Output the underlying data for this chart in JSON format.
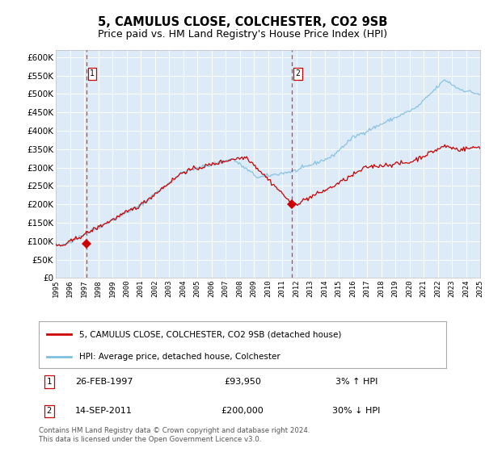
{
  "title": "5, CAMULUS CLOSE, COLCHESTER, CO2 9SB",
  "subtitle": "Price paid vs. HM Land Registry's House Price Index (HPI)",
  "title_fontsize": 10.5,
  "subtitle_fontsize": 9,
  "background_color": "#ddeaf7",
  "hpi_color": "#7fbfdf",
  "price_color": "#cc0000",
  "ylim": [
    0,
    620000
  ],
  "ytick_vals": [
    0,
    50000,
    100000,
    150000,
    200000,
    250000,
    300000,
    350000,
    400000,
    450000,
    500000,
    550000,
    600000
  ],
  "ytick_labels": [
    "£0",
    "£50K",
    "£100K",
    "£150K",
    "£200K",
    "£250K",
    "£300K",
    "£350K",
    "£400K",
    "£450K",
    "£500K",
    "£550K",
    "£600K"
  ],
  "legend_label_price": "5, CAMULUS CLOSE, COLCHESTER, CO2 9SB (detached house)",
  "legend_label_hpi": "HPI: Average price, detached house, Colchester",
  "annotation1_label": "1",
  "annotation1_date": "26-FEB-1997",
  "annotation1_price": "£93,950",
  "annotation1_hpi": "3% ↑ HPI",
  "annotation2_label": "2",
  "annotation2_date": "14-SEP-2011",
  "annotation2_price": "£200,000",
  "annotation2_hpi": "30% ↓ HPI",
  "footer": "Contains HM Land Registry data © Crown copyright and database right 2024.\nThis data is licensed under the Open Government Licence v3.0.",
  "vline1_x": 1997.15,
  "vline2_x": 2011.71,
  "sale1_x": 1997.15,
  "sale1_y": 93950,
  "sale2_x": 2011.71,
  "sale2_y": 200000,
  "xmin": 1995,
  "xmax": 2025
}
